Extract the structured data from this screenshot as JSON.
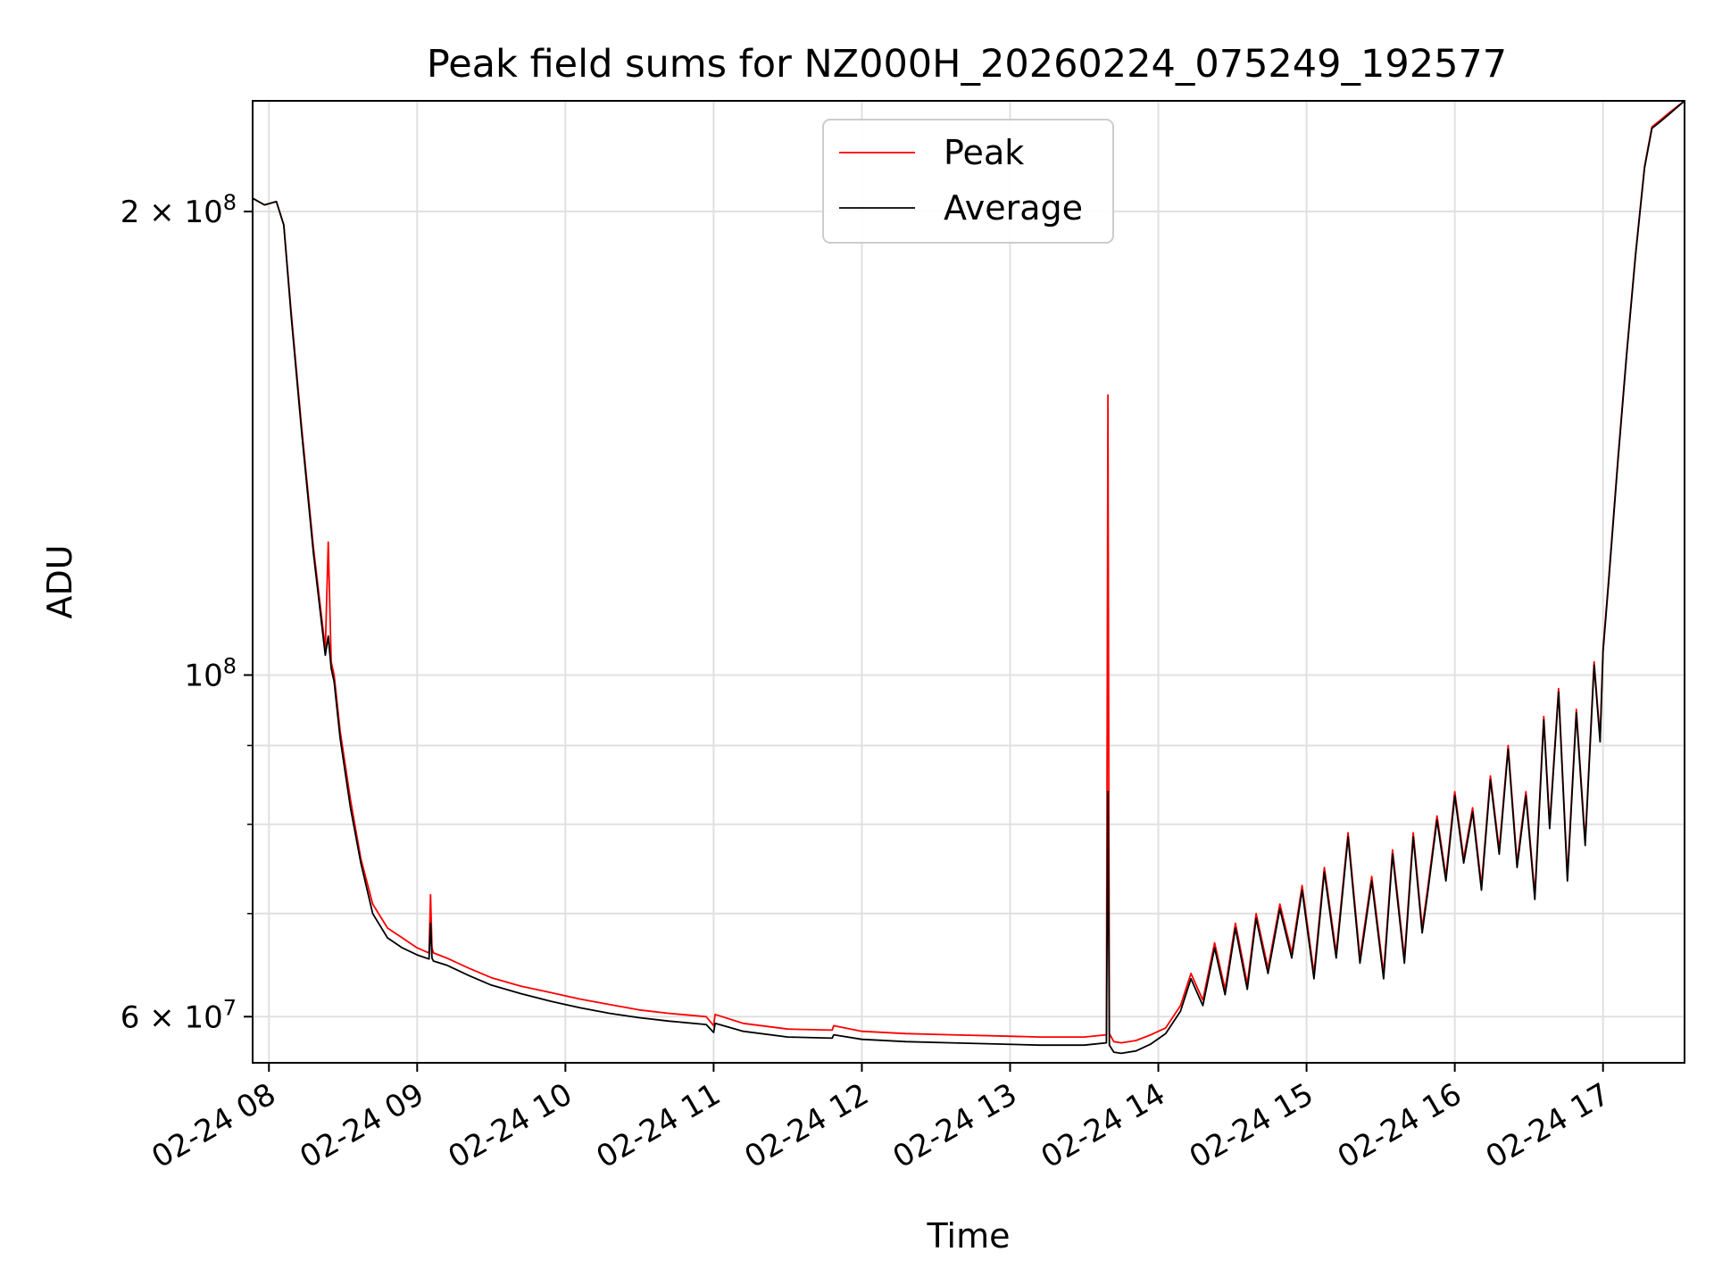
{
  "chart_data": {
    "type": "line",
    "title": "Peak field sums for NZ000H_20260224_075249_192577",
    "xlabel": "Time",
    "ylabel": "ADU",
    "yscale": "log",
    "ylim": [
      56000000,
      236000000
    ],
    "xlim_hours": [
      7.89,
      17.55
    ],
    "grid": true,
    "legend": {
      "position": "upper center",
      "entries": [
        "Peak",
        "Average"
      ]
    },
    "x_tick_labels": [
      "02-24 08",
      "02-24 09",
      "02-24 10",
      "02-24 11",
      "02-24 12",
      "02-24 13",
      "02-24 14",
      "02-24 15",
      "02-24 16",
      "02-24 17"
    ],
    "x_tick_hours": [
      8,
      9,
      10,
      11,
      12,
      13,
      14,
      15,
      16,
      17
    ],
    "y_tick_labels": [
      {
        "value": 200000000,
        "mantissa": "2 × 10",
        "exp": "8"
      },
      {
        "value": 100000000,
        "mantissa": "10",
        "exp": "8"
      },
      {
        "value": 60000000,
        "mantissa": "6 × 10",
        "exp": "7"
      }
    ],
    "y_minor_ticks": [
      70000000,
      80000000,
      90000000
    ],
    "series": [
      {
        "name": "Peak",
        "color": "#ff0000",
        "x_hours": [
          7.89,
          7.97,
          8.05,
          8.1,
          8.15,
          8.22,
          8.3,
          8.38,
          8.4,
          8.42,
          8.44,
          8.48,
          8.55,
          8.62,
          8.7,
          8.8,
          8.9,
          9.0,
          9.08,
          9.09,
          9.1,
          9.11,
          9.2,
          9.35,
          9.5,
          9.7,
          9.9,
          10.1,
          10.3,
          10.5,
          10.7,
          10.95,
          11.0,
          11.01,
          11.2,
          11.5,
          11.8,
          11.81,
          12.0,
          12.3,
          12.6,
          12.9,
          13.2,
          13.5,
          13.65,
          13.66,
          13.67,
          13.7,
          13.75,
          13.85,
          13.95,
          14.05,
          14.15,
          14.22,
          14.3,
          14.38,
          14.45,
          14.52,
          14.6,
          14.66,
          14.74,
          14.82,
          14.9,
          14.97,
          15.05,
          15.12,
          15.2,
          15.28,
          15.36,
          15.44,
          15.52,
          15.58,
          15.66,
          15.72,
          15.78,
          15.82,
          15.88,
          15.94,
          16.0,
          16.06,
          16.12,
          16.18,
          16.24,
          16.3,
          16.36,
          16.42,
          16.48,
          16.54,
          16.6,
          16.64,
          16.7,
          16.76,
          16.82,
          16.88,
          16.94,
          16.98,
          17.0,
          17.04,
          17.1,
          17.16,
          17.22,
          17.28,
          17.33,
          17.38,
          17.45,
          17.55
        ],
        "values": [
          204000000,
          202000000,
          203000000,
          196000000,
          172000000,
          145000000,
          121000000,
          104000000,
          122000000,
          102000000,
          100000000,
          92000000,
          83000000,
          76000000,
          71000000,
          68500000,
          67500000,
          66500000,
          66000000,
          72000000,
          66500000,
          66000000,
          65500000,
          64500000,
          63600000,
          62800000,
          62200000,
          61600000,
          61100000,
          60600000,
          60300000,
          60000000,
          59200000,
          60200000,
          59400000,
          58900000,
          58800000,
          59200000,
          58700000,
          58500000,
          58400000,
          58300000,
          58200000,
          58200000,
          58400000,
          152000000,
          58500000,
          57800000,
          57700000,
          57900000,
          58400000,
          59000000,
          61000000,
          64000000,
          61500000,
          67000000,
          62500000,
          69000000,
          63000000,
          70000000,
          64500000,
          71000000,
          66000000,
          73000000,
          64000000,
          75000000,
          66000000,
          79000000,
          65500000,
          74000000,
          64000000,
          77000000,
          65500000,
          79000000,
          68500000,
          73000000,
          81000000,
          74000000,
          84000000,
          76000000,
          82000000,
          73000000,
          86000000,
          77000000,
          90000000,
          75500000,
          84000000,
          72000000,
          94000000,
          80000000,
          98000000,
          74000000,
          95000000,
          78000000,
          102000000,
          91000000,
          104000000,
          116000000,
          138000000,
          162000000,
          188000000,
          214000000,
          227000000,
          229000000,
          232000000,
          236000000
        ]
      },
      {
        "name": "Average",
        "color": "#000000",
        "x_hours": [
          7.89,
          7.97,
          8.05,
          8.1,
          8.15,
          8.22,
          8.3,
          8.38,
          8.4,
          8.42,
          8.44,
          8.48,
          8.55,
          8.62,
          8.7,
          8.8,
          8.9,
          9.0,
          9.08,
          9.09,
          9.1,
          9.11,
          9.2,
          9.35,
          9.5,
          9.7,
          9.9,
          10.1,
          10.3,
          10.5,
          10.7,
          10.95,
          11.0,
          11.01,
          11.2,
          11.5,
          11.8,
          11.81,
          12.0,
          12.3,
          12.6,
          12.9,
          13.2,
          13.5,
          13.65,
          13.66,
          13.67,
          13.7,
          13.75,
          13.85,
          13.95,
          14.05,
          14.15,
          14.22,
          14.3,
          14.38,
          14.45,
          14.52,
          14.6,
          14.66,
          14.74,
          14.82,
          14.9,
          14.97,
          15.05,
          15.12,
          15.2,
          15.28,
          15.36,
          15.44,
          15.52,
          15.58,
          15.66,
          15.72,
          15.78,
          15.82,
          15.88,
          15.94,
          16.0,
          16.06,
          16.12,
          16.18,
          16.24,
          16.3,
          16.36,
          16.42,
          16.48,
          16.54,
          16.6,
          16.64,
          16.7,
          16.76,
          16.82,
          16.88,
          16.94,
          16.98,
          17.0,
          17.04,
          17.1,
          17.16,
          17.22,
          17.28,
          17.33,
          17.38,
          17.45,
          17.55
        ],
        "values": [
          204000000,
          202000000,
          203000000,
          196000000,
          171000000,
          144000000,
          120000000,
          103000000,
          106000000,
          101000000,
          99000000,
          91000000,
          82000000,
          75500000,
          70000000,
          67500000,
          66500000,
          65800000,
          65400000,
          69000000,
          65500000,
          65200000,
          64800000,
          63800000,
          62900000,
          62100000,
          61400000,
          60800000,
          60300000,
          59900000,
          59600000,
          59300000,
          58600000,
          59400000,
          58700000,
          58200000,
          58100000,
          58400000,
          58000000,
          57800000,
          57700000,
          57600000,
          57500000,
          57500000,
          57700000,
          84000000,
          57500000,
          56900000,
          56800000,
          57000000,
          57600000,
          58500000,
          60500000,
          63500000,
          61000000,
          66500000,
          62000000,
          68500000,
          62500000,
          69500000,
          64000000,
          70500000,
          65500000,
          72500000,
          63500000,
          74500000,
          65500000,
          78500000,
          65000000,
          73500000,
          63500000,
          76500000,
          65000000,
          78500000,
          68000000,
          72500000,
          80500000,
          73500000,
          83500000,
          75500000,
          81500000,
          72500000,
          85500000,
          76500000,
          89500000,
          75000000,
          83500000,
          71500000,
          93500000,
          79500000,
          97500000,
          73500000,
          94500000,
          77500000,
          101500000,
          90500000,
          103500000,
          115500000,
          137500000,
          161500000,
          187500000,
          213500000,
          226500000,
          228500000,
          231500000,
          236000000
        ]
      }
    ]
  }
}
